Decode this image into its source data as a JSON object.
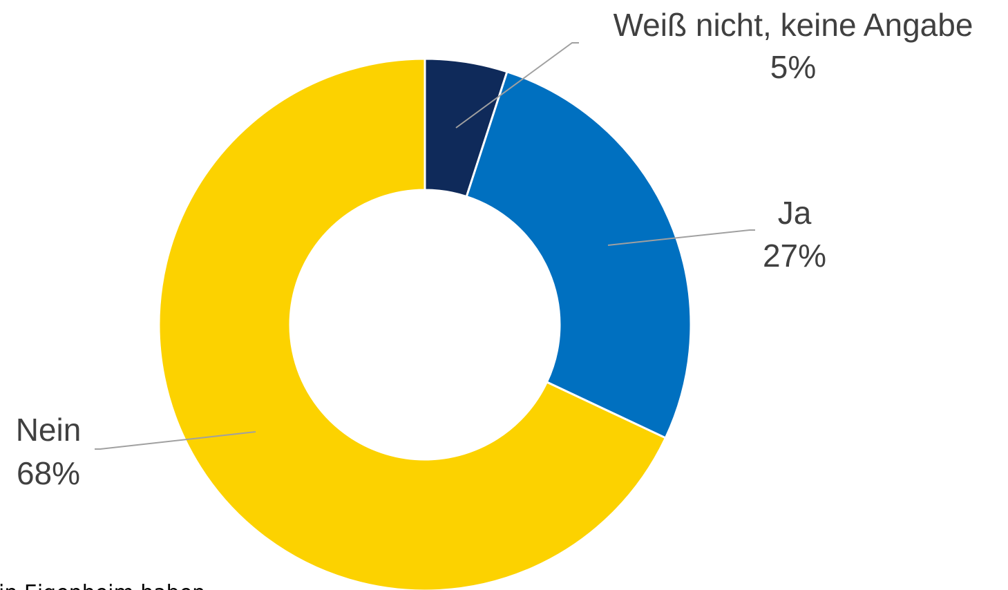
{
  "chart_data": {
    "type": "donut",
    "categories": [
      "Weiß nicht, keine Angabe",
      "Ja",
      "Nein"
    ],
    "values": [
      5,
      27,
      68
    ],
    "value_labels": [
      "5%",
      "27%",
      "68%"
    ],
    "colors": [
      "#0f2a5a",
      "#0070c0",
      "#fcd200"
    ],
    "footnote": "in Eigenheim haben"
  }
}
